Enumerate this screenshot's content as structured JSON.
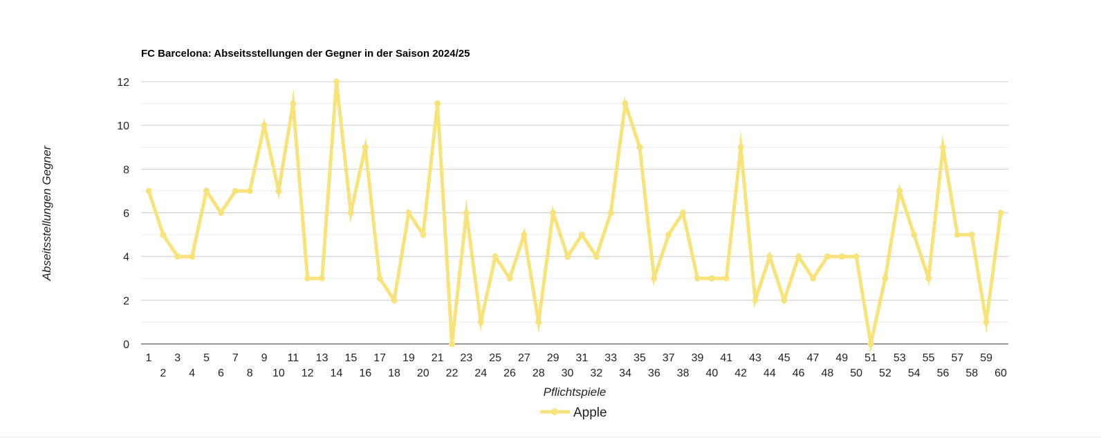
{
  "chart_data": {
    "type": "line",
    "title": "FC Barcelona: Abseitsstellungen der Gegner in der Saison 2024/25",
    "xlabel": "Pflichtspiele",
    "ylabel": "Abseitsstellungen Gegner",
    "ylim": [
      0,
      12
    ],
    "y_ticks": [
      "0",
      "2",
      "4",
      "6",
      "8",
      "10",
      "12"
    ],
    "grid": true,
    "legend_position": "bottom",
    "categories": [
      "1",
      "2",
      "3",
      "4",
      "5",
      "6",
      "7",
      "8",
      "9",
      "10",
      "11",
      "12",
      "13",
      "14",
      "15",
      "16",
      "17",
      "18",
      "19",
      "20",
      "21",
      "22",
      "23",
      "24",
      "25",
      "26",
      "27",
      "28",
      "29",
      "30",
      "31",
      "32",
      "33",
      "34",
      "35",
      "36",
      "37",
      "38",
      "39",
      "40",
      "41",
      "42",
      "43",
      "44",
      "45",
      "46",
      "47",
      "48",
      "49",
      "50",
      "51",
      "52",
      "53",
      "54",
      "55",
      "56",
      "57",
      "58",
      "59",
      "60"
    ],
    "series": [
      {
        "name": "Apple",
        "color": "#f7e37a",
        "values": [
          7,
          5,
          4,
          4,
          7,
          6,
          7,
          7,
          10,
          7,
          11,
          3,
          3,
          12,
          6,
          9,
          3,
          2,
          6,
          5,
          11,
          0,
          6,
          1,
          4,
          3,
          5,
          1,
          6,
          4,
          5,
          4,
          6,
          11,
          9,
          3,
          5,
          6,
          3,
          3,
          3,
          9,
          2,
          4,
          2,
          4,
          3,
          4,
          4,
          4,
          0,
          3,
          7,
          5,
          3,
          9,
          5,
          5,
          1,
          6
        ]
      }
    ]
  }
}
